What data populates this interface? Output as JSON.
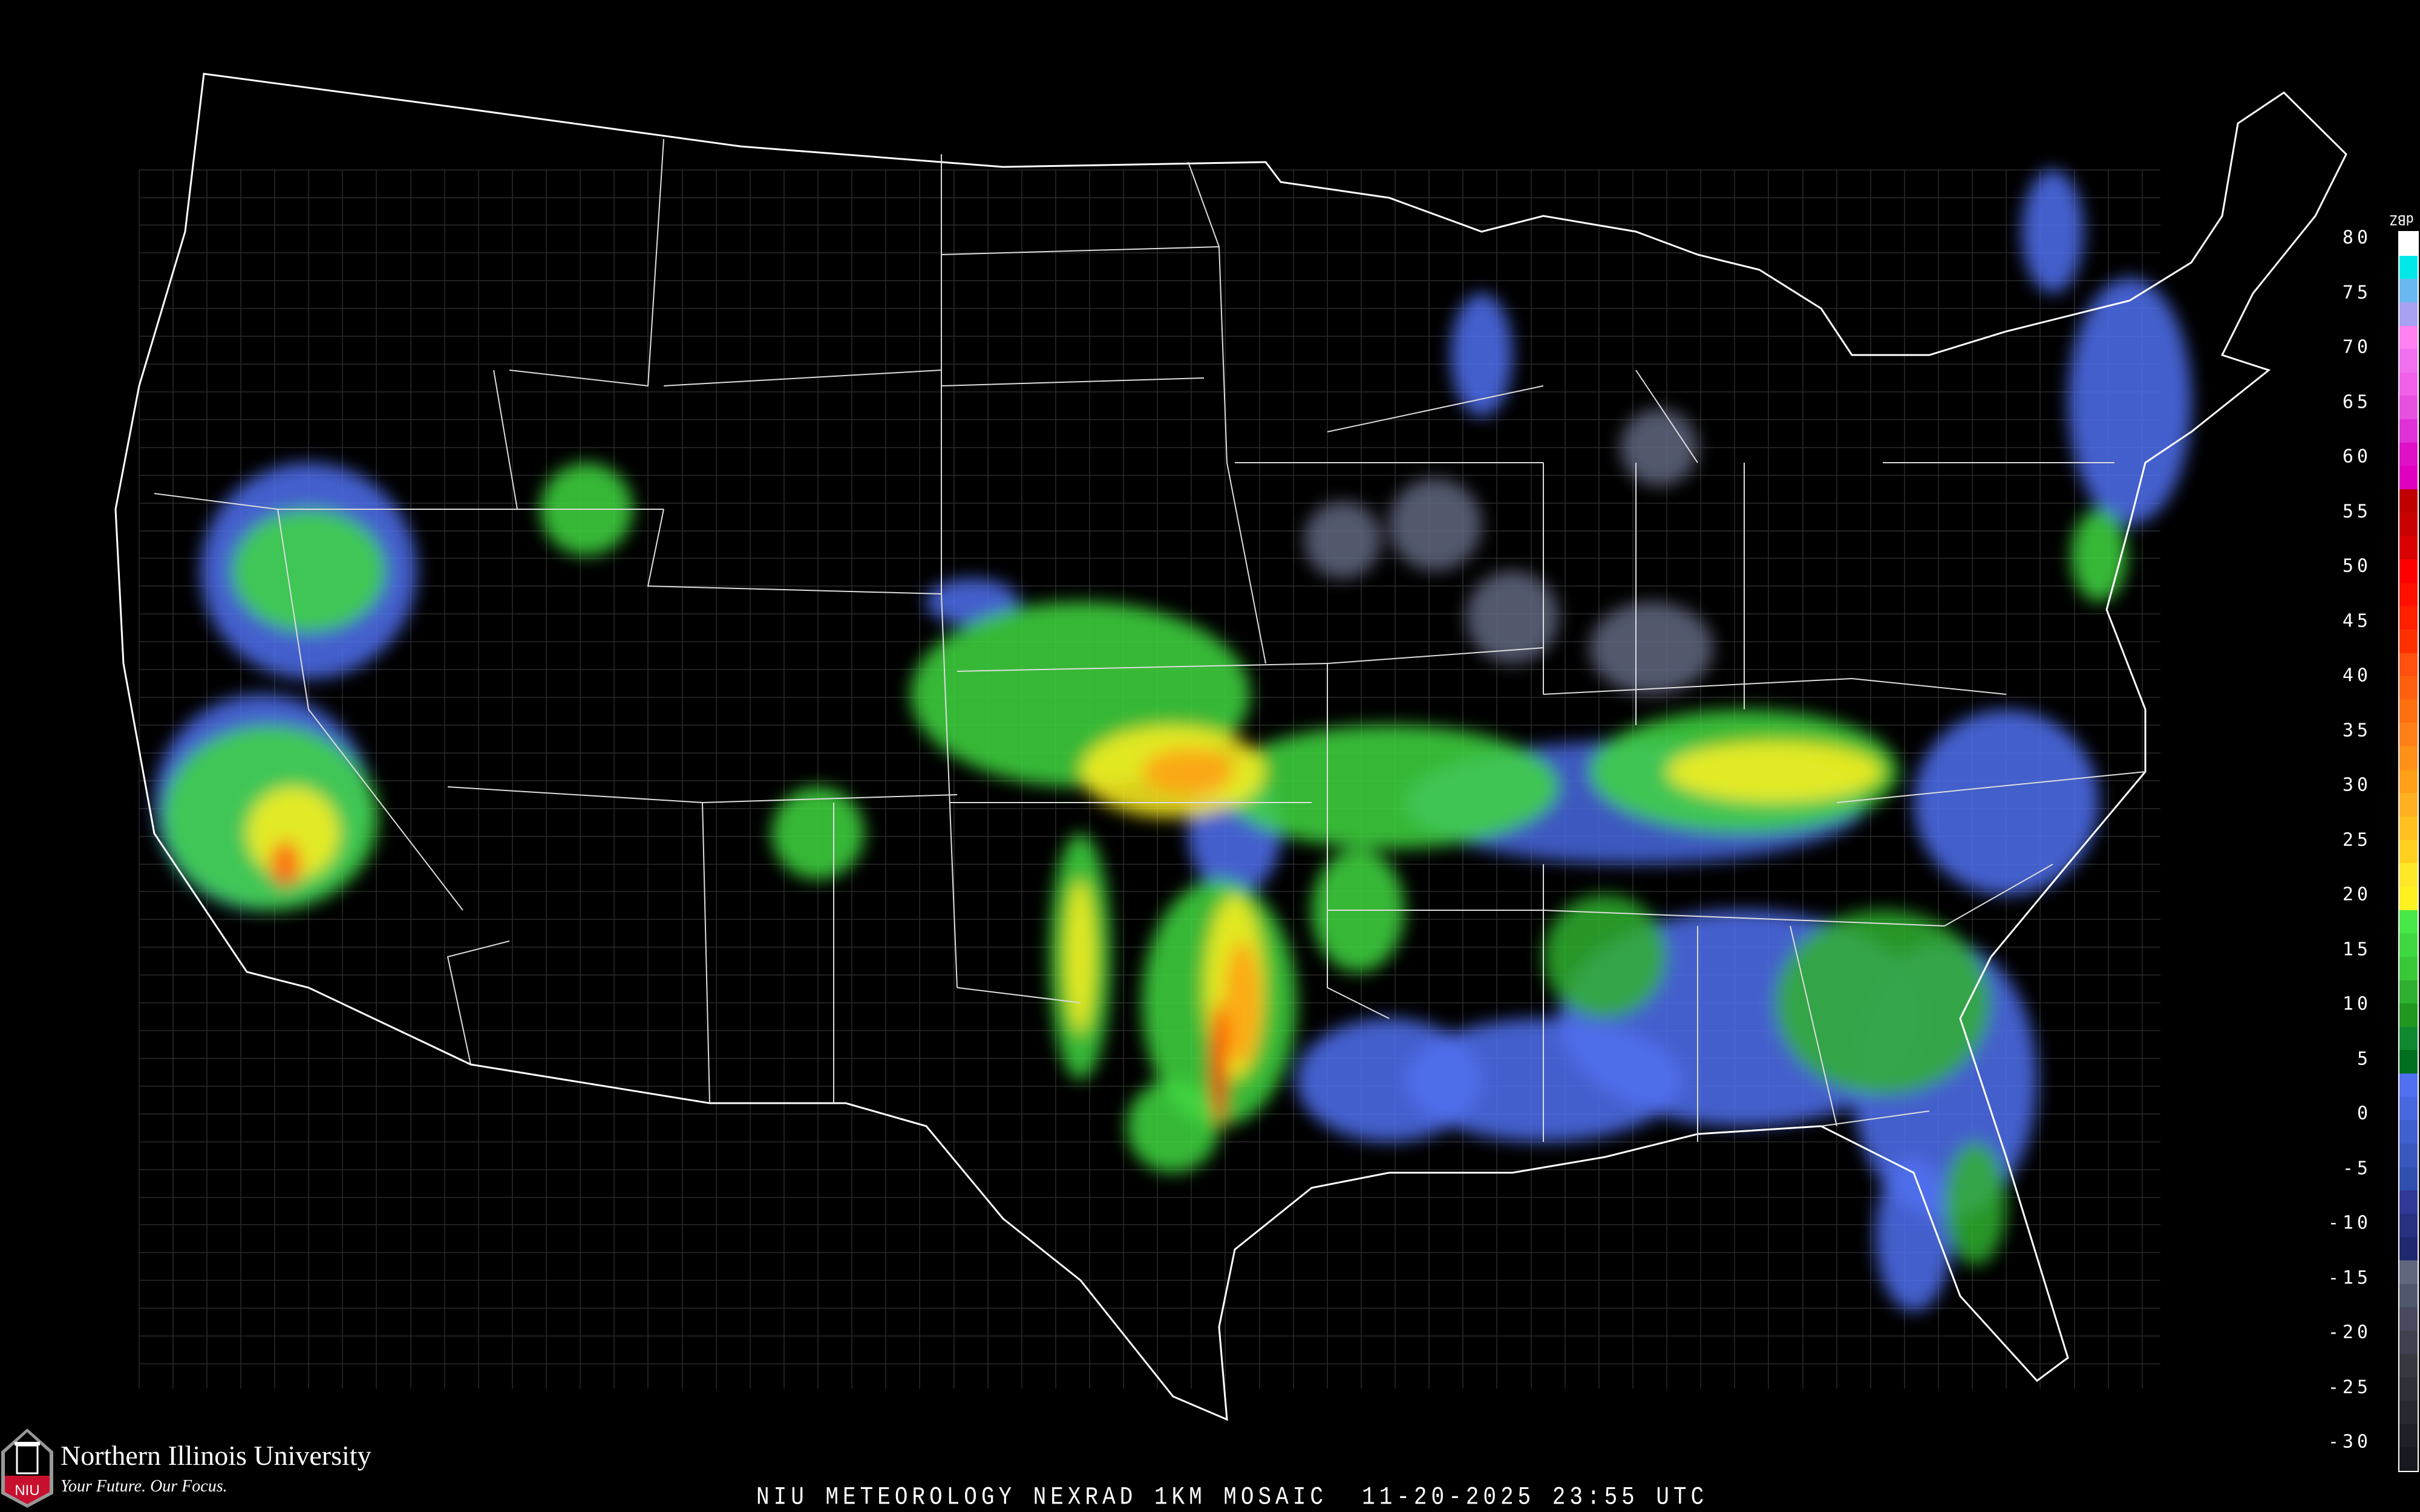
{
  "product": {
    "title": "NIU METEOROLOGY NEXRAD 1KM MOSAIC  11-20-2025 23:55 UTC"
  },
  "logo": {
    "name": "Northern Illinois University",
    "tagline": "Your Future. Our Focus.",
    "mark_text": "NIU",
    "brand_color": "#c8102e"
  },
  "colorbar": {
    "unit": "dBZ",
    "ticks": [
      "80",
      "75",
      "70",
      "65",
      "60",
      "55",
      "50",
      "45",
      "40",
      "35",
      "30",
      "25",
      "20",
      "15",
      "10",
      "5",
      "0",
      "-5",
      "-10",
      "-15",
      "-20",
      "-25",
      "-30"
    ],
    "colors": [
      "#ffffff",
      "#00e8e8",
      "#6ab8f0",
      "#a8a0f0",
      "#ff80f0",
      "#f070f0",
      "#f060e8",
      "#e850e0",
      "#e030d8",
      "#e010c8",
      "#e000c0",
      "#c00000",
      "#c80000",
      "#d80000",
      "#ff0000",
      "#ff1000",
      "#ff2000",
      "#ff3000",
      "#ff5010",
      "#ff6010",
      "#ff7010",
      "#ff8018",
      "#ff9018",
      "#ffa018",
      "#ffb020",
      "#ffc020",
      "#ffd020",
      "#ffe828",
      "#fff020",
      "#48e848",
      "#40d840",
      "#38c838",
      "#30b030",
      "#209820",
      "#108830",
      "#007020",
      "#5070f0",
      "#4868e0",
      "#4060d0",
      "#3858c0",
      "#3050b0",
      "#303898",
      "#283080",
      "#202870",
      "#606880",
      "#505870",
      "#484860",
      "#404050",
      "#383840",
      "#303038",
      "#282830",
      "#202028",
      "#181820"
    ],
    "color_values": [
      80,
      -32
    ]
  },
  "map": {
    "region": "CONUS",
    "background": "#000000",
    "border_color": "#ffffff",
    "county_color": "#6a6a6a",
    "highway_color": "#8a4a20"
  }
}
